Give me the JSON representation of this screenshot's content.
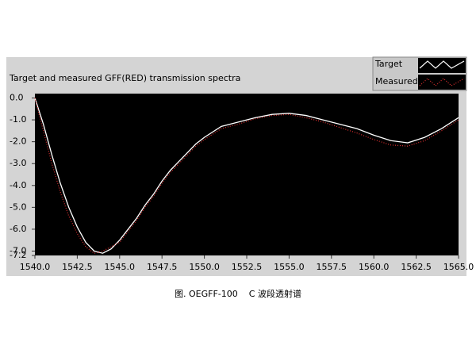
{
  "chart_data": {
    "type": "line",
    "title": "Target and measured GFF(RED) transmission spectra",
    "caption": "图. OEGFF-100    C 波段透射谱",
    "legend": "top-right",
    "x": [
      1540,
      1540.5,
      1541,
      1541.5,
      1542,
      1542.5,
      1543,
      1543.5,
      1544,
      1544.5,
      1545,
      1545.5,
      1546,
      1546.5,
      1547,
      1547.5,
      1548,
      1548.5,
      1549,
      1549.5,
      1550,
      1551,
      1552,
      1553,
      1554,
      1555,
      1556,
      1557,
      1558,
      1559,
      1560,
      1561,
      1562,
      1563,
      1564,
      1565
    ],
    "series": [
      {
        "name": "Target",
        "color": "#ffffff",
        "values": [
          0,
          -1.2,
          -2.6,
          -3.9,
          -5.0,
          -5.9,
          -6.6,
          -7.0,
          -7.1,
          -6.9,
          -6.5,
          -6.0,
          -5.5,
          -4.9,
          -4.4,
          -3.8,
          -3.3,
          -2.9,
          -2.5,
          -2.1,
          -1.8,
          -1.3,
          -1.1,
          -0.9,
          -0.75,
          -0.7,
          -0.8,
          -1.0,
          -1.2,
          -1.4,
          -1.7,
          -1.95,
          -2.05,
          -1.8,
          -1.4,
          -0.9
        ]
      },
      {
        "name": "Measured",
        "color": "#e03030",
        "values": [
          0,
          -1.5,
          -3.0,
          -4.3,
          -5.4,
          -6.2,
          -6.8,
          -7.1,
          -7.0,
          -6.8,
          -6.6,
          -6.1,
          -5.6,
          -5.0,
          -4.5,
          -3.9,
          -3.4,
          -3.0,
          -2.6,
          -2.2,
          -1.9,
          -1.4,
          -1.2,
          -0.95,
          -0.8,
          -0.75,
          -0.9,
          -1.1,
          -1.35,
          -1.6,
          -1.9,
          -2.15,
          -2.2,
          -1.95,
          -1.5,
          -1.0
        ]
      }
    ],
    "xlim": [
      1540,
      1565
    ],
    "ylim": [
      -7.2,
      0.2
    ],
    "xticks": [
      {
        "value": 1540,
        "label": "1540.0"
      },
      {
        "value": 1542.5,
        "label": "1542.5"
      },
      {
        "value": 1545,
        "label": "1545.0"
      },
      {
        "value": 1547.5,
        "label": "1547.5"
      },
      {
        "value": 1550,
        "label": "1550.0"
      },
      {
        "value": 1552.5,
        "label": "1552.5"
      },
      {
        "value": 1555,
        "label": "1555.0"
      },
      {
        "value": 1557.5,
        "label": "1557.5"
      },
      {
        "value": 1560,
        "label": "1560.0"
      },
      {
        "value": 1562.5,
        "label": "1562.5"
      },
      {
        "value": 1565,
        "label": "1565.0"
      }
    ],
    "yticks": [
      {
        "value": 0,
        "label": "0.0"
      },
      {
        "value": -1,
        "label": "-1.0"
      },
      {
        "value": -2,
        "label": "-2.0"
      },
      {
        "value": -3,
        "label": "-3.0"
      },
      {
        "value": -4,
        "label": "-4.0"
      },
      {
        "value": -5,
        "label": "-5.0"
      },
      {
        "value": -6,
        "label": "-6.0"
      },
      {
        "value": -7,
        "label": "-7.0"
      },
      {
        "value": -7.2,
        "label": "-7.2"
      }
    ]
  }
}
